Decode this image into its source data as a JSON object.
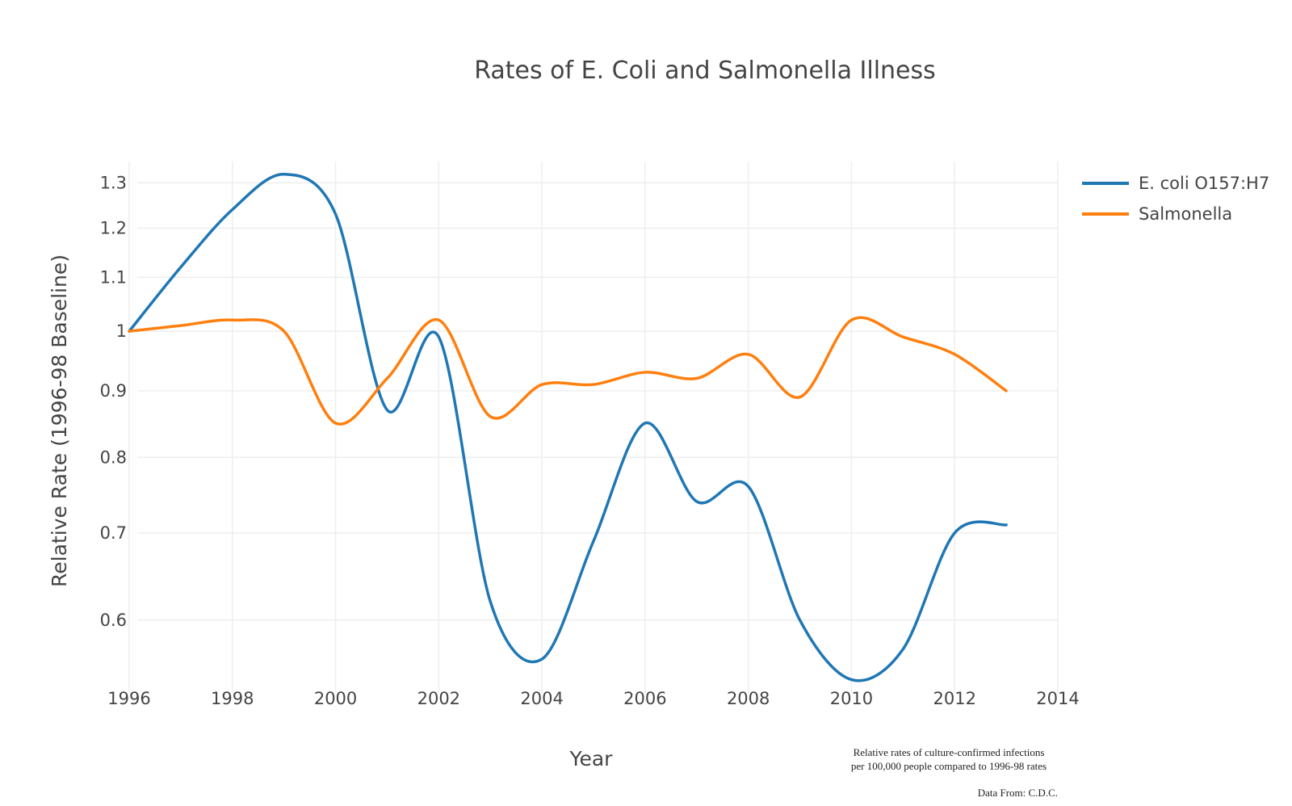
{
  "chart_data": {
    "type": "line",
    "title": "Rates of E. Coli and Salmonella Illness",
    "xlabel": "Year",
    "ylabel": "Relative Rate (1996-98 Baseline)",
    "x": [
      1996,
      1997,
      1998,
      1999,
      2000,
      2001,
      2002,
      2003,
      2004,
      2005,
      2006,
      2007,
      2008,
      2009,
      2010,
      2011,
      2012,
      2013
    ],
    "series": [
      {
        "name": "E. coli O157:H7",
        "color": "#1f77b4",
        "values": [
          1.0,
          1.12,
          1.24,
          1.32,
          1.23,
          0.87,
          0.99,
          0.62,
          0.56,
          0.69,
          0.85,
          0.74,
          0.76,
          0.6,
          0.54,
          0.57,
          0.7,
          0.71
        ]
      },
      {
        "name": "Salmonella",
        "color": "#ff7f0e",
        "values": [
          1.0,
          1.01,
          1.02,
          1.0,
          0.85,
          0.92,
          1.02,
          0.86,
          0.91,
          0.91,
          0.93,
          0.92,
          0.96,
          0.89,
          1.02,
          0.99,
          0.96,
          0.9
        ]
      }
    ],
    "xticks": [
      "1996",
      "1998",
      "2000",
      "2002",
      "2004",
      "2006",
      "2008",
      "2010",
      "2012",
      "2014"
    ],
    "yticks": [
      "0.6",
      "0.7",
      "0.8",
      "0.9",
      "1",
      "1.1",
      "1.2",
      "1.3"
    ],
    "xlim": [
      1996,
      2014
    ],
    "ylim": [
      0.52,
      1.35
    ],
    "yscale": "log",
    "grid": true,
    "legend": "right"
  },
  "annotations": {
    "note_line1": "Relative rates of culture-confirmed infections",
    "note_line2": "per 100,000 people compared to 1996-98 rates",
    "source": "Data From: C.D.C."
  }
}
